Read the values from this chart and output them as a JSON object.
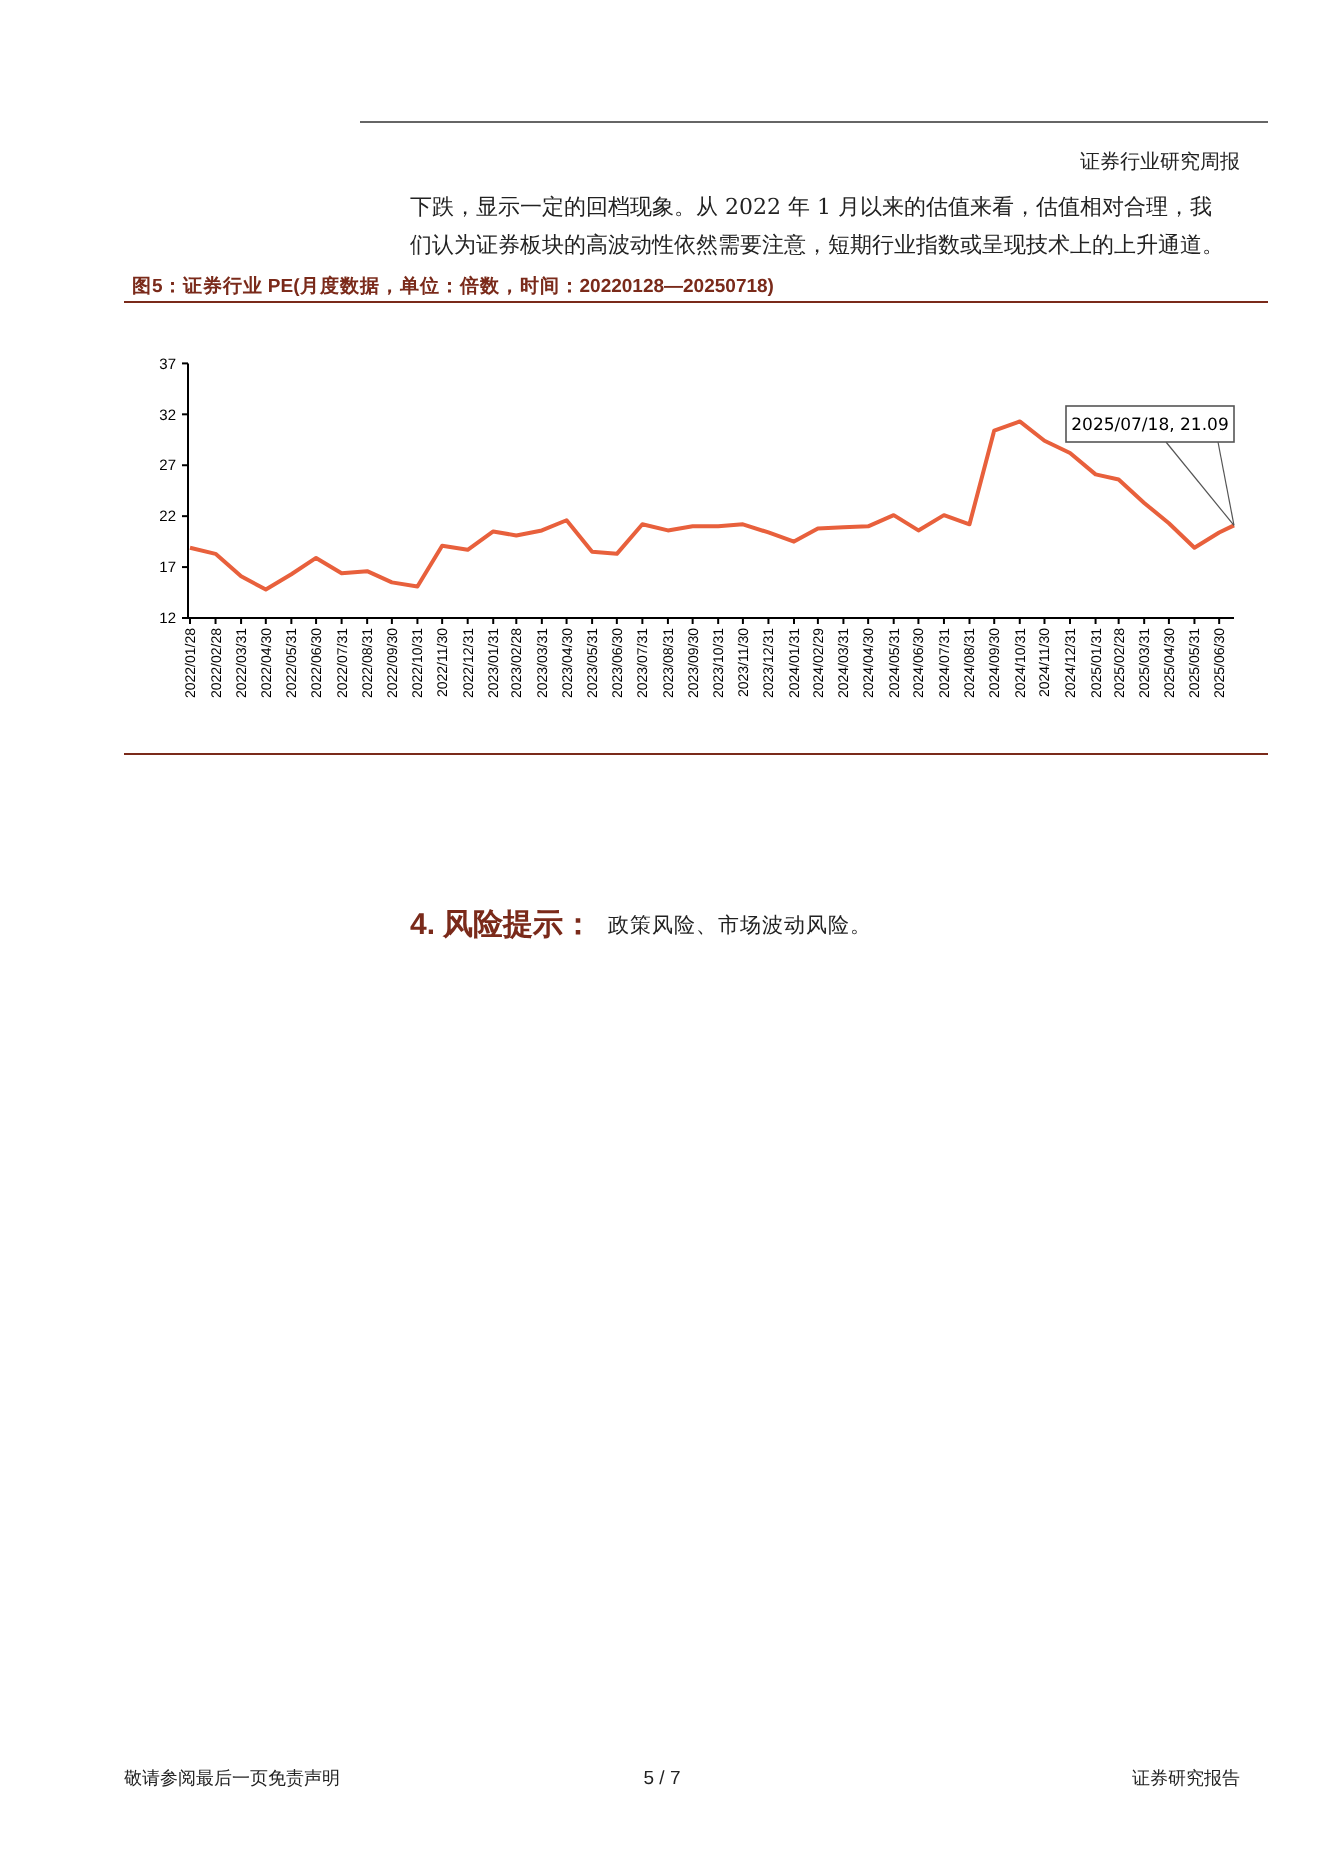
{
  "chart_data": {
    "type": "line",
    "title": "图5：证券行业 PE(月度数据，单位：倍数，时间：20220128—20250718)",
    "x": [
      "2022-01-28",
      "2022-02-28",
      "2022-03-31",
      "2022-04-30",
      "2022-05-31",
      "2022-06-30",
      "2022-07-31",
      "2022-08-31",
      "2022-09-30",
      "2022-10-31",
      "2022-11-30",
      "2022-12-31",
      "2023-01-31",
      "2023-02-28",
      "2023-03-31",
      "2023-04-30",
      "2023-05-31",
      "2023-06-30",
      "2023-07-31",
      "2023-08-31",
      "2023-09-30",
      "2023-10-31",
      "2023-11-30",
      "2023-12-31",
      "2024-01-31",
      "2024-02-29",
      "2024-03-31",
      "2024-04-30",
      "2024-05-31",
      "2024-06-30",
      "2024-07-31",
      "2024-08-31",
      "2024-09-30",
      "2024-10-31",
      "2024-11-30",
      "2024-12-31",
      "2025-01-31",
      "2025-02-28",
      "2025-03-31",
      "2025-04-30",
      "2025-05-31",
      "2025-06-30",
      "2025-07-18"
    ],
    "series": [
      {
        "color": "#e8603c",
        "values": [
          18.9,
          18.3,
          16.1,
          14.8,
          16.3,
          17.9,
          16.4,
          16.6,
          15.5,
          15.1,
          19.1,
          18.7,
          20.5,
          20.1,
          20.6,
          21.6,
          18.5,
          18.3,
          21.2,
          20.6,
          21.0,
          21.0,
          21.2,
          20.4,
          19.5,
          20.8,
          20.9,
          21.0,
          22.1,
          20.6,
          22.1,
          21.2,
          30.4,
          31.3,
          29.4,
          28.2,
          26.1,
          25.6,
          23.3,
          21.3,
          18.9,
          20.4,
          21.09
        ]
      }
    ],
    "xlim": [
      "2022-01-28",
      "2025-07-18"
    ],
    "xticks": [
      {
        "value": "2022-01-28",
        "label": "2022/01/28"
      },
      {
        "value": "2022-02-28",
        "label": "2022/02/28"
      },
      {
        "value": "2022-03-31",
        "label": "2022/03/31"
      },
      {
        "value": "2022-04-30",
        "label": "2022/04/30"
      },
      {
        "value": "2022-05-31",
        "label": "2022/05/31"
      },
      {
        "value": "2022-06-30",
        "label": "2022/06/30"
      },
      {
        "value": "2022-07-31",
        "label": "2022/07/31"
      },
      {
        "value": "2022-08-31",
        "label": "2022/08/31"
      },
      {
        "value": "2022-09-30",
        "label": "2022/09/30"
      },
      {
        "value": "2022-10-31",
        "label": "2022/10/31"
      },
      {
        "value": "2022-11-30",
        "label": "2022/11/30"
      },
      {
        "value": "2022-12-31",
        "label": "2022/12/31"
      },
      {
        "value": "2023-01-31",
        "label": "2023/01/31"
      },
      {
        "value": "2023-02-28",
        "label": "2023/02/28"
      },
      {
        "value": "2023-03-31",
        "label": "2023/03/31"
      },
      {
        "value": "2023-04-30",
        "label": "2023/04/30"
      },
      {
        "value": "2023-05-31",
        "label": "2023/05/31"
      },
      {
        "value": "2023-06-30",
        "label": "2023/06/30"
      },
      {
        "value": "2023-07-31",
        "label": "2023/07/31"
      },
      {
        "value": "2023-08-31",
        "label": "2023/08/31"
      },
      {
        "value": "2023-09-30",
        "label": "2023/09/30"
      },
      {
        "value": "2023-10-31",
        "label": "2023/10/31"
      },
      {
        "value": "2023-11-30",
        "label": "2023/11/30"
      },
      {
        "value": "2023-12-31",
        "label": "2023/12/31"
      },
      {
        "value": "2024-01-31",
        "label": "2024/01/31"
      },
      {
        "value": "2024-02-29",
        "label": "2024/02/29"
      },
      {
        "value": "2024-03-31",
        "label": "2024/03/31"
      },
      {
        "value": "2024-04-30",
        "label": "2024/04/30"
      },
      {
        "value": "2024-05-31",
        "label": "2024/05/31"
      },
      {
        "value": "2024-06-30",
        "label": "2024/06/30"
      },
      {
        "value": "2024-07-31",
        "label": "2024/07/31"
      },
      {
        "value": "2024-08-31",
        "label": "2024/08/31"
      },
      {
        "value": "2024-09-30",
        "label": "2024/09/30"
      },
      {
        "value": "2024-10-31",
        "label": "2024/10/31"
      },
      {
        "value": "2024-11-30",
        "label": "2024/11/30"
      },
      {
        "value": "2024-12-31",
        "label": "2024/12/31"
      },
      {
        "value": "2025-01-31",
        "label": "2025/01/31"
      },
      {
        "value": "2025-02-28",
        "label": "2025/02/28"
      },
      {
        "value": "2025-03-31",
        "label": "2025/03/31"
      },
      {
        "value": "2025-04-30",
        "label": "2025/04/30"
      },
      {
        "value": "2025-05-31",
        "label": "2025/05/31"
      },
      {
        "value": "2025-06-30",
        "label": "2025/06/30"
      }
    ],
    "ylim": [
      12,
      37
    ],
    "yticks": [
      12,
      17,
      22,
      27,
      32,
      37
    ],
    "grid": false,
    "marker": "none",
    "line_style": "solid",
    "annotations": [
      {
        "text": "2025/07/18, 21.09",
        "x": "2025-07-18",
        "y": 21.09
      },
      "证券行业研究周报",
      "下跌，显示一定的回档现象。从 2022 年 1 月以来的估值来看，估值相对合理，我",
      "们认为证券板块的高波动性依然需要注意，短期行业指数或呈现技术上的上升通道。",
      "4. 风险提示：",
      "政策风险、市场波动风险。",
      "敬请参阅最后一页免责声明",
      "5 / 7",
      "证券研究报告"
    ]
  }
}
